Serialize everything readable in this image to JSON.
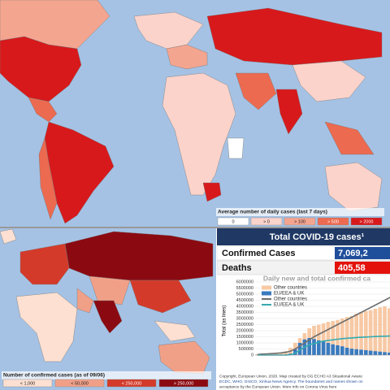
{
  "top_map": {
    "legend": {
      "title": "Average number of daily cases (last 7 days)",
      "classes": [
        {
          "label": "0",
          "color": "#ffffff"
        },
        {
          "label": "> 0",
          "color": "#fbd3cb"
        },
        {
          "label": "> 100",
          "color": "#f4a590"
        },
        {
          "label": "> 500",
          "color": "#ec6a50"
        },
        {
          "label": "> 2000",
          "color": "#d7191c"
        }
      ]
    }
  },
  "bottom_map": {
    "legend": {
      "title": "Number of confirmed cases (as of 09/06)",
      "classes": [
        {
          "label": "< 1,000",
          "color": "#fde0d2"
        },
        {
          "label": "< 50,000",
          "color": "#f1a088"
        },
        {
          "label": "< 250,000",
          "color": "#d43a2a"
        },
        {
          "label": "> 250,000",
          "color": "#8b0a12"
        }
      ]
    }
  },
  "panel": {
    "title": "Total COVID-19 cases¹",
    "stats": [
      {
        "label": "Confirmed Cases",
        "value": "7,069,2",
        "color": "#1f4e9a"
      },
      {
        "label": "Deaths",
        "value": "405,58",
        "color": "#e3120b"
      }
    ],
    "footer": [
      "Copyright, European Union, 2020. Map created by DG ECHO A3 Situational Aware",
      "ECDC, WHO, GISCO, Xinhua News Agency. The boundaries and names shown on",
      "acceptance by the European Union.  More info on Corona Virus here"
    ]
  },
  "chart_data": {
    "type": "bar",
    "title": "Daily new and total confirmed ca",
    "y_label": "Total (as lines)",
    "categories": [
      null,
      null,
      null,
      null,
      null,
      null,
      null,
      null,
      null,
      null,
      null,
      null,
      null,
      null,
      null,
      null,
      null,
      null,
      null,
      null,
      null,
      null,
      null,
      null,
      null,
      null,
      null,
      null,
      null,
      null
    ],
    "ylim": [
      0,
      6000000
    ],
    "yticks": [
      0,
      500000,
      1000000,
      1500000,
      2000000,
      2500000,
      3000000,
      3500000,
      4000000,
      4500000,
      5000000,
      5500000,
      6000000
    ],
    "y2lim": [
      0,
      150000
    ],
    "grid": true,
    "series": [
      {
        "name": "Other countries",
        "type": "bar",
        "axis": "y2",
        "color": "#f7c9a4",
        "values": [
          2000,
          3000,
          2000,
          4000,
          3000,
          5000,
          8000,
          15000,
          25000,
          35000,
          45000,
          55000,
          60000,
          62000,
          65000,
          68000,
          70000,
          72000,
          75000,
          78000,
          80000,
          85000,
          88000,
          90000,
          92000,
          95000,
          98000,
          100000,
          96000,
          102000
        ]
      },
      {
        "name": "EU/EEA & UK",
        "type": "bar",
        "axis": "y2",
        "color": "#3a7bbf",
        "values": [
          0,
          0,
          0,
          0,
          0,
          0,
          500,
          3000,
          12000,
          25000,
          32000,
          35000,
          33000,
          30000,
          28000,
          25000,
          22000,
          20000,
          18000,
          15000,
          13000,
          12000,
          11000,
          10000,
          9000,
          8000,
          7000,
          6000,
          5000,
          4000
        ]
      },
      {
        "name": "Other countries",
        "type": "line",
        "color": "#6f6f6f",
        "values": [
          50000,
          80000,
          100000,
          120000,
          150000,
          180000,
          230000,
          320000,
          500000,
          750000,
          1000000,
          1250000,
          1500000,
          1700000,
          1900000,
          2100000,
          2300000,
          2500000,
          2700000,
          2900000,
          3100000,
          3300000,
          3500000,
          3700000,
          3900000,
          4100000,
          4300000,
          4500000,
          4700000,
          4900000
        ]
      },
      {
        "name": "EU/EEA & UK",
        "type": "line",
        "color": "#35aab0",
        "values": [
          0,
          0,
          0,
          0,
          0,
          0,
          5000,
          30000,
          150000,
          400000,
          650000,
          850000,
          950000,
          1050000,
          1150000,
          1200000,
          1250000,
          1300000,
          1350000,
          1380000,
          1410000,
          1440000,
          1460000,
          1480000,
          1500000,
          1520000,
          1540000,
          1550000,
          1560000,
          1570000
        ]
      }
    ]
  }
}
